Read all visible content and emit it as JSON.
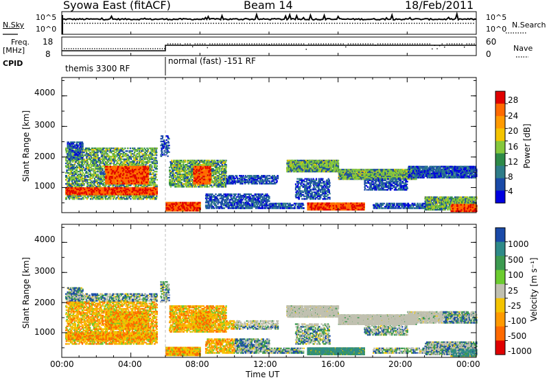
{
  "header": {
    "radar": "Syowa East (fitACF)",
    "beam": "Beam 14",
    "date": "18/Feb/2011"
  },
  "top_panels": {
    "nsky_label": "N.Sky",
    "nsky_ticks": [
      "10^5",
      "10^0"
    ],
    "nsearch_label": "N.Search",
    "nsearch_ticks": [
      "10^5",
      "10^0"
    ],
    "freq_label": "Freq.",
    "freq_unit": "[MHz]",
    "freq_ticks": [
      "18",
      "8"
    ],
    "nave_label": "Nave",
    "nave_ticks": [
      "60",
      "0"
    ],
    "cpid_label": "CPID",
    "cpid_modes": [
      "themis 3300 RF",
      "normal (fast) -151 RF"
    ]
  },
  "chart_data": [
    {
      "type": "heatmap",
      "name": "power",
      "ylabel": "Slant Range [km]",
      "yticks": [
        "4000",
        "3000",
        "2000",
        "1000"
      ],
      "ylim": [
        180,
        4600
      ],
      "xlim": [
        0,
        24
      ],
      "colorbar": {
        "label": "Power [dB]",
        "ticks": [
          "28",
          "24",
          "20",
          "16",
          "12",
          "8",
          "4"
        ],
        "colors": [
          "#e00000",
          "#ff6a00",
          "#ff9a00",
          "#f4c400",
          "#86c83c",
          "#2e8a48",
          "#2e7c88",
          "#1a4aa8",
          "#0000e0"
        ]
      }
    },
    {
      "type": "heatmap",
      "name": "velocity",
      "ylabel": "Slant Range [km]",
      "yticks": [
        "4000",
        "3000",
        "2000",
        "1000"
      ],
      "ylim": [
        180,
        4600
      ],
      "xlim": [
        0,
        24
      ],
      "xlabel": "Time UT",
      "xticks": [
        "00:00",
        "04:00",
        "08:00",
        "12:00",
        "16:00",
        "20:00",
        "00:00"
      ],
      "colorbar": {
        "label": "Velocity [m s⁻¹]",
        "ticks": [
          "1000",
          "500",
          "100",
          "25",
          "-25",
          "-100",
          "-500",
          "-1000"
        ],
        "colors": [
          "#1a4aa8",
          "#2e8a88",
          "#3c9a50",
          "#6ccc30",
          "#c0c0b0",
          "#f4c400",
          "#ff9a00",
          "#ff6a00",
          "#e00000"
        ]
      }
    }
  ]
}
